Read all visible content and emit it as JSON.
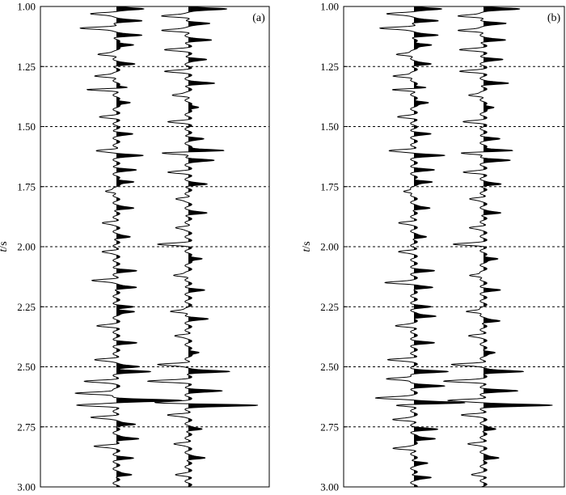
{
  "chart_data": [
    {
      "type": "line",
      "panel_label": "(a)",
      "ylabel": "t/s",
      "ylim": [
        1.0,
        3.0
      ],
      "y_ticks": [
        "1.00",
        "1.25",
        "1.50",
        "1.75",
        "2.00",
        "2.25",
        "2.50",
        "2.75",
        "3.00"
      ],
      "y_tick_values": [
        1.0,
        1.25,
        1.5,
        1.75,
        2.0,
        2.25,
        2.5,
        2.75,
        3.0
      ],
      "grid": true,
      "traces": [
        {
          "events": [
            {
              "t": 1.01,
              "a": 0.45
            },
            {
              "t": 1.03,
              "a": -0.4
            },
            {
              "t": 1.06,
              "a": 0.35
            },
            {
              "t": 1.09,
              "a": -0.55
            },
            {
              "t": 1.12,
              "a": 0.35
            },
            {
              "t": 1.16,
              "a": 0.3
            },
            {
              "t": 1.2,
              "a": -0.3
            },
            {
              "t": 1.24,
              "a": 0.25
            },
            {
              "t": 1.29,
              "a": -0.35
            },
            {
              "t": 1.34,
              "a": 0.4
            },
            {
              "t": 1.345,
              "a": -0.6
            },
            {
              "t": 1.4,
              "a": 0.25
            },
            {
              "t": 1.46,
              "a": -0.2
            },
            {
              "t": 1.53,
              "a": 0.2
            },
            {
              "t": 1.6,
              "a": -0.3
            },
            {
              "t": 1.62,
              "a": 0.35
            },
            {
              "t": 1.68,
              "a": 0.25
            },
            {
              "t": 1.73,
              "a": 0.3
            },
            {
              "t": 1.77,
              "a": -0.2
            },
            {
              "t": 1.84,
              "a": 0.25
            },
            {
              "t": 1.9,
              "a": -0.2
            },
            {
              "t": 1.96,
              "a": 0.2
            },
            {
              "t": 2.02,
              "a": -0.2
            },
            {
              "t": 2.1,
              "a": 0.25
            },
            {
              "t": 2.14,
              "a": -0.35
            },
            {
              "t": 2.17,
              "a": 0.3
            },
            {
              "t": 2.25,
              "a": 0.2
            },
            {
              "t": 2.27,
              "a": 0.3
            },
            {
              "t": 2.33,
              "a": -0.25
            },
            {
              "t": 2.4,
              "a": 0.25
            },
            {
              "t": 2.47,
              "a": -0.3
            },
            {
              "t": 2.5,
              "a": 0.35
            },
            {
              "t": 2.52,
              "a": 0.45
            },
            {
              "t": 2.56,
              "a": -0.45
            },
            {
              "t": 2.61,
              "a": -0.65
            },
            {
              "t": 2.64,
              "a": 0.9
            },
            {
              "t": 2.66,
              "a": -0.55
            },
            {
              "t": 2.71,
              "a": -0.35
            },
            {
              "t": 2.74,
              "a": 0.3
            },
            {
              "t": 2.8,
              "a": 0.35
            },
            {
              "t": 2.83,
              "a": -0.3
            },
            {
              "t": 2.88,
              "a": 0.2
            },
            {
              "t": 2.95,
              "a": 0.25
            }
          ]
        },
        {
          "events": [
            {
              "t": 1.01,
              "a": 0.55
            },
            {
              "t": 1.04,
              "a": -0.4
            },
            {
              "t": 1.07,
              "a": 0.3
            },
            {
              "t": 1.1,
              "a": -0.4
            },
            {
              "t": 1.14,
              "a": 0.3
            },
            {
              "t": 1.18,
              "a": -0.3
            },
            {
              "t": 1.22,
              "a": 0.25
            },
            {
              "t": 1.27,
              "a": -0.3
            },
            {
              "t": 1.32,
              "a": 0.35
            },
            {
              "t": 1.37,
              "a": -0.25
            },
            {
              "t": 1.42,
              "a": 0.2
            },
            {
              "t": 1.48,
              "a": -0.25
            },
            {
              "t": 1.55,
              "a": 0.2
            },
            {
              "t": 1.6,
              "a": 0.6
            },
            {
              "t": 1.61,
              "a": -0.45
            },
            {
              "t": 1.64,
              "a": 0.35
            },
            {
              "t": 1.69,
              "a": -0.25
            },
            {
              "t": 1.74,
              "a": 0.25
            },
            {
              "t": 1.8,
              "a": -0.2
            },
            {
              "t": 1.86,
              "a": 0.25
            },
            {
              "t": 1.92,
              "a": -0.2
            },
            {
              "t": 1.99,
              "a": -0.4
            },
            {
              "t": 2.05,
              "a": 0.25
            },
            {
              "t": 2.12,
              "a": -0.25
            },
            {
              "t": 2.18,
              "a": 0.2
            },
            {
              "t": 2.27,
              "a": -0.3
            },
            {
              "t": 2.3,
              "a": 0.25
            },
            {
              "t": 2.37,
              "a": -0.2
            },
            {
              "t": 2.44,
              "a": 0.2
            },
            {
              "t": 2.49,
              "a": -0.45
            },
            {
              "t": 2.52,
              "a": 0.6
            },
            {
              "t": 2.56,
              "a": -0.55
            },
            {
              "t": 2.6,
              "a": 0.45
            },
            {
              "t": 2.65,
              "a": -0.5
            },
            {
              "t": 2.66,
              "a": 1.0
            },
            {
              "t": 2.7,
              "a": -0.3
            },
            {
              "t": 2.76,
              "a": 0.2
            },
            {
              "t": 2.82,
              "a": -0.2
            },
            {
              "t": 2.88,
              "a": 0.25
            },
            {
              "t": 2.95,
              "a": -0.15
            }
          ]
        }
      ]
    },
    {
      "type": "line",
      "panel_label": "(b)",
      "ylabel": "t/s",
      "ylim": [
        1.0,
        3.0
      ],
      "y_ticks": [
        "1.00",
        "1.25",
        "1.50",
        "1.75",
        "2.00",
        "2.25",
        "2.50",
        "2.75",
        "3.00"
      ],
      "y_tick_values": [
        1.0,
        1.25,
        1.5,
        1.75,
        2.0,
        2.25,
        2.5,
        2.75,
        3.0
      ],
      "grid": true,
      "traces": [
        {
          "events": [
            {
              "t": 1.01,
              "a": 0.45
            },
            {
              "t": 1.03,
              "a": -0.4
            },
            {
              "t": 1.06,
              "a": 0.35
            },
            {
              "t": 1.09,
              "a": -0.5
            },
            {
              "t": 1.12,
              "a": 0.35
            },
            {
              "t": 1.16,
              "a": 0.3
            },
            {
              "t": 1.2,
              "a": -0.3
            },
            {
              "t": 1.24,
              "a": 0.25
            },
            {
              "t": 1.29,
              "a": -0.35
            },
            {
              "t": 1.34,
              "a": 0.4
            },
            {
              "t": 1.345,
              "a": -0.5
            },
            {
              "t": 1.4,
              "a": 0.25
            },
            {
              "t": 1.46,
              "a": -0.2
            },
            {
              "t": 1.53,
              "a": 0.2
            },
            {
              "t": 1.6,
              "a": -0.35
            },
            {
              "t": 1.62,
              "a": 0.4
            },
            {
              "t": 1.68,
              "a": 0.25
            },
            {
              "t": 1.73,
              "a": 0.3
            },
            {
              "t": 1.77,
              "a": -0.2
            },
            {
              "t": 1.84,
              "a": 0.25
            },
            {
              "t": 1.9,
              "a": -0.2
            },
            {
              "t": 1.96,
              "a": 0.2
            },
            {
              "t": 2.02,
              "a": -0.2
            },
            {
              "t": 2.1,
              "a": 0.25
            },
            {
              "t": 2.15,
              "a": -0.4
            },
            {
              "t": 2.17,
              "a": 0.3
            },
            {
              "t": 2.25,
              "a": 0.2
            },
            {
              "t": 2.29,
              "a": 0.35
            },
            {
              "t": 2.33,
              "a": -0.25
            },
            {
              "t": 2.4,
              "a": 0.25
            },
            {
              "t": 2.47,
              "a": -0.35
            },
            {
              "t": 2.52,
              "a": 0.45
            },
            {
              "t": 2.55,
              "a": -0.45
            },
            {
              "t": 2.58,
              "a": 0.4
            },
            {
              "t": 2.63,
              "a": -0.55
            },
            {
              "t": 2.65,
              "a": 0.8
            },
            {
              "t": 2.66,
              "a": -0.3
            },
            {
              "t": 2.72,
              "a": -0.3
            },
            {
              "t": 2.76,
              "a": 0.3
            },
            {
              "t": 2.8,
              "a": 0.35
            },
            {
              "t": 2.84,
              "a": -0.3
            },
            {
              "t": 2.9,
              "a": 0.2
            },
            {
              "t": 2.96,
              "a": 0.25
            }
          ]
        },
        {
          "events": [
            {
              "t": 1.01,
              "a": 0.5
            },
            {
              "t": 1.04,
              "a": -0.4
            },
            {
              "t": 1.07,
              "a": 0.3
            },
            {
              "t": 1.1,
              "a": -0.4
            },
            {
              "t": 1.14,
              "a": 0.3
            },
            {
              "t": 1.18,
              "a": -0.3
            },
            {
              "t": 1.22,
              "a": 0.25
            },
            {
              "t": 1.27,
              "a": -0.3
            },
            {
              "t": 1.32,
              "a": 0.35
            },
            {
              "t": 1.37,
              "a": -0.25
            },
            {
              "t": 1.42,
              "a": 0.2
            },
            {
              "t": 1.48,
              "a": -0.25
            },
            {
              "t": 1.55,
              "a": 0.2
            },
            {
              "t": 1.6,
              "a": 0.5
            },
            {
              "t": 1.61,
              "a": -0.4
            },
            {
              "t": 1.64,
              "a": 0.35
            },
            {
              "t": 1.69,
              "a": -0.25
            },
            {
              "t": 1.74,
              "a": 0.25
            },
            {
              "t": 1.8,
              "a": -0.2
            },
            {
              "t": 1.86,
              "a": 0.25
            },
            {
              "t": 1.92,
              "a": -0.2
            },
            {
              "t": 1.99,
              "a": -0.4
            },
            {
              "t": 2.05,
              "a": 0.25
            },
            {
              "t": 2.12,
              "a": -0.25
            },
            {
              "t": 2.18,
              "a": 0.2
            },
            {
              "t": 2.27,
              "a": -0.3
            },
            {
              "t": 2.31,
              "a": 0.25
            },
            {
              "t": 2.37,
              "a": -0.2
            },
            {
              "t": 2.44,
              "a": 0.2
            },
            {
              "t": 2.49,
              "a": -0.45
            },
            {
              "t": 2.52,
              "a": 0.6
            },
            {
              "t": 2.56,
              "a": -0.55
            },
            {
              "t": 2.6,
              "a": 0.45
            },
            {
              "t": 2.64,
              "a": -0.5
            },
            {
              "t": 2.66,
              "a": 0.95
            },
            {
              "t": 2.7,
              "a": -0.3
            },
            {
              "t": 2.76,
              "a": 0.2
            },
            {
              "t": 2.82,
              "a": -0.2
            },
            {
              "t": 2.88,
              "a": 0.25
            },
            {
              "t": 2.95,
              "a": -0.15
            }
          ]
        }
      ]
    }
  ]
}
